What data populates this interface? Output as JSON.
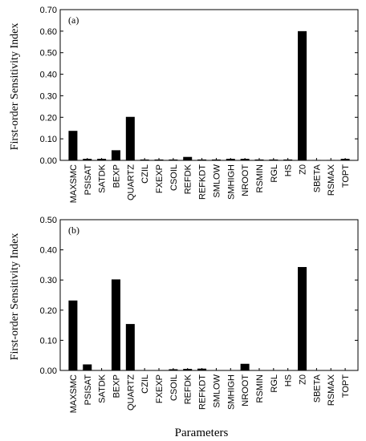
{
  "figure": {
    "ylabel": "First-order Sensitivity Index",
    "xlabel": "Parameters"
  },
  "chart_data": [
    {
      "type": "bar",
      "panel_label": "(a)",
      "ylabel": "First-order Sensitivity Index",
      "xlabel": "",
      "ylim": [
        0,
        0.7
      ],
      "yticks": [
        "0.00",
        "0.10",
        "0.20",
        "0.30",
        "0.40",
        "0.50",
        "0.60",
        "0.70"
      ],
      "categories": [
        "MAXSMC",
        "PSISAT",
        "SATDK",
        "BEXP",
        "QUARTZ",
        "CZIL",
        "FXEXP",
        "CSOIL",
        "REFDK",
        "REFKDT",
        "SMLOW",
        "SMHIGH",
        "NROOT",
        "RSMIN",
        "RGL",
        "HS",
        "Z0",
        "SBETA",
        "RSMAX",
        "TOPT"
      ],
      "values": [
        0.137,
        0.007,
        0.007,
        0.047,
        0.202,
        0.004,
        0.004,
        0.004,
        0.016,
        0.004,
        0.004,
        0.007,
        0.007,
        0.004,
        0.004,
        0.004,
        0.6,
        0.002,
        0.002,
        0.007
      ],
      "bar_color": "#000000",
      "grid": false
    },
    {
      "type": "bar",
      "panel_label": "(b)",
      "ylabel": "First-order Sensitivity Index",
      "xlabel": "Parameters",
      "ylim": [
        0,
        0.5
      ],
      "yticks": [
        "0.00",
        "0.10",
        "0.20",
        "0.30",
        "0.40",
        "0.50"
      ],
      "categories": [
        "MAXSMC",
        "PSISAT",
        "SATDK",
        "BEXP",
        "QUARTZ",
        "CZIL",
        "FXEXP",
        "CSOIL",
        "REFDK",
        "REFKDT",
        "SMLOW",
        "SMHIGH",
        "NROOT",
        "RSMIN",
        "RGL",
        "HS",
        "Z0",
        "SBETA",
        "RSMAX",
        "TOPT"
      ],
      "values": [
        0.232,
        0.02,
        0.001,
        0.302,
        0.154,
        0.001,
        0.001,
        0.004,
        0.005,
        0.006,
        0.001,
        0.001,
        0.022,
        0.001,
        0.001,
        0.001,
        0.343,
        0.001,
        0.001,
        0.001
      ],
      "bar_color": "#000000",
      "grid": false
    }
  ]
}
